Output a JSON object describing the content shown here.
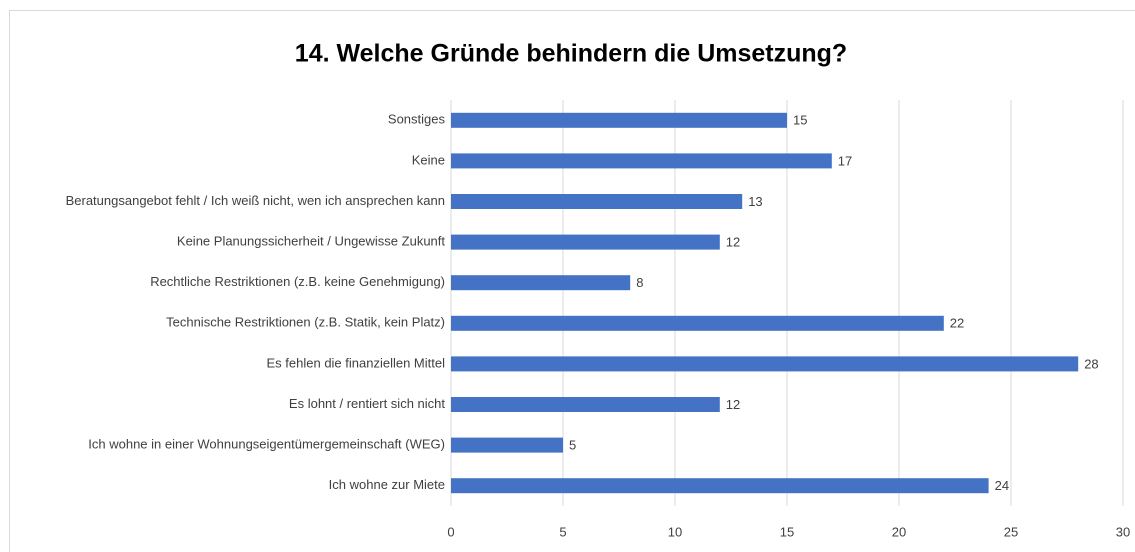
{
  "chart_data": {
    "type": "bar",
    "orientation": "horizontal",
    "title": "14. Welche Gründe behindern die Umsetzung?",
    "categories": [
      "Sonstiges",
      "Keine",
      "Beratungsangebot fehlt / Ich weiß nicht, wen ich ansprechen kann",
      "Keine Planungssicherheit / Ungewisse Zukunft",
      "Rechtliche Restriktionen (z.B. keine Genehmigung)",
      "Technische Restriktionen (z.B. Statik, kein Platz)",
      "Es fehlen die finanziellen Mittel",
      "Es lohnt / rentiert sich nicht",
      "Ich wohne in einer Wohnungseigentümergemeinschaft (WEG)",
      "Ich wohne zur Miete"
    ],
    "values": [
      15,
      17,
      13,
      12,
      8,
      22,
      28,
      12,
      5,
      24
    ],
    "color": "#4472c4",
    "xlim": [
      0,
      30
    ],
    "xticks": [
      0,
      5,
      10,
      15,
      20,
      25,
      30
    ],
    "grid": true
  }
}
